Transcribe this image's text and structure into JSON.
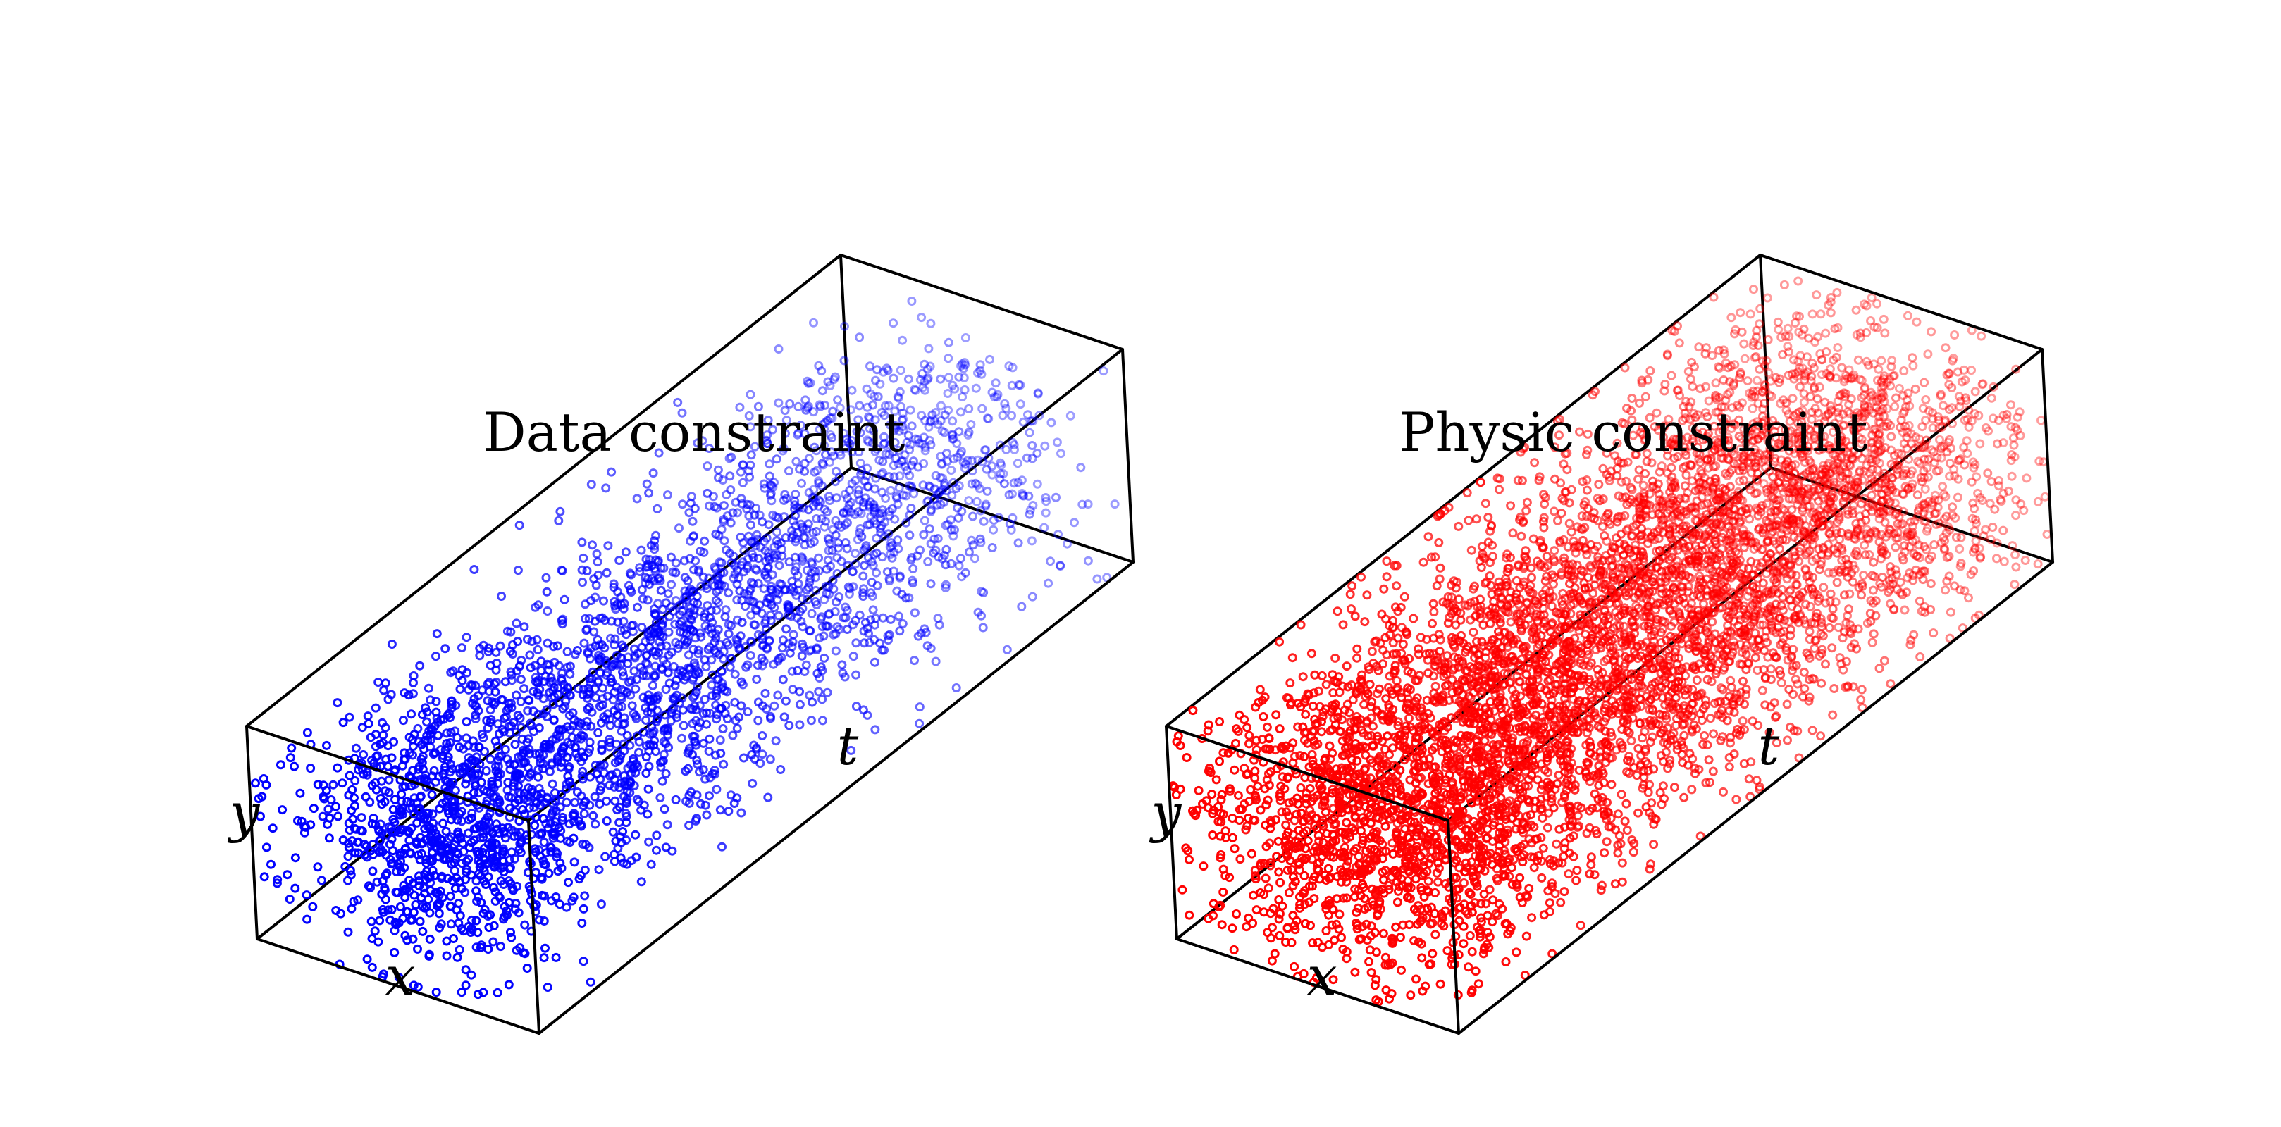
{
  "chart_data": [
    {
      "type": "scatter",
      "title": "Data constraint",
      "xlabel": "x",
      "ylabel": "y",
      "tlabel": "t",
      "projection": "3d",
      "grid": false,
      "marker": "open-circle",
      "color": "#0000ff",
      "distribution": "concentrated near the middle of the x and y ranges, sparser toward high t",
      "point_count": 3000,
      "xlim": [
        0,
        1
      ],
      "ylim": [
        0,
        1
      ],
      "tlim": [
        0,
        1
      ]
    },
    {
      "type": "scatter",
      "title": "Physic constraint",
      "xlabel": "x",
      "ylabel": "y",
      "tlabel": "t",
      "projection": "3d",
      "grid": false,
      "marker": "open-circle",
      "color": "#ff0000",
      "distribution": "dense throughout the domain",
      "point_count": 6000,
      "xlim": [
        0,
        1
      ],
      "ylim": [
        0,
        1
      ],
      "tlim": [
        0,
        1
      ]
    }
  ]
}
